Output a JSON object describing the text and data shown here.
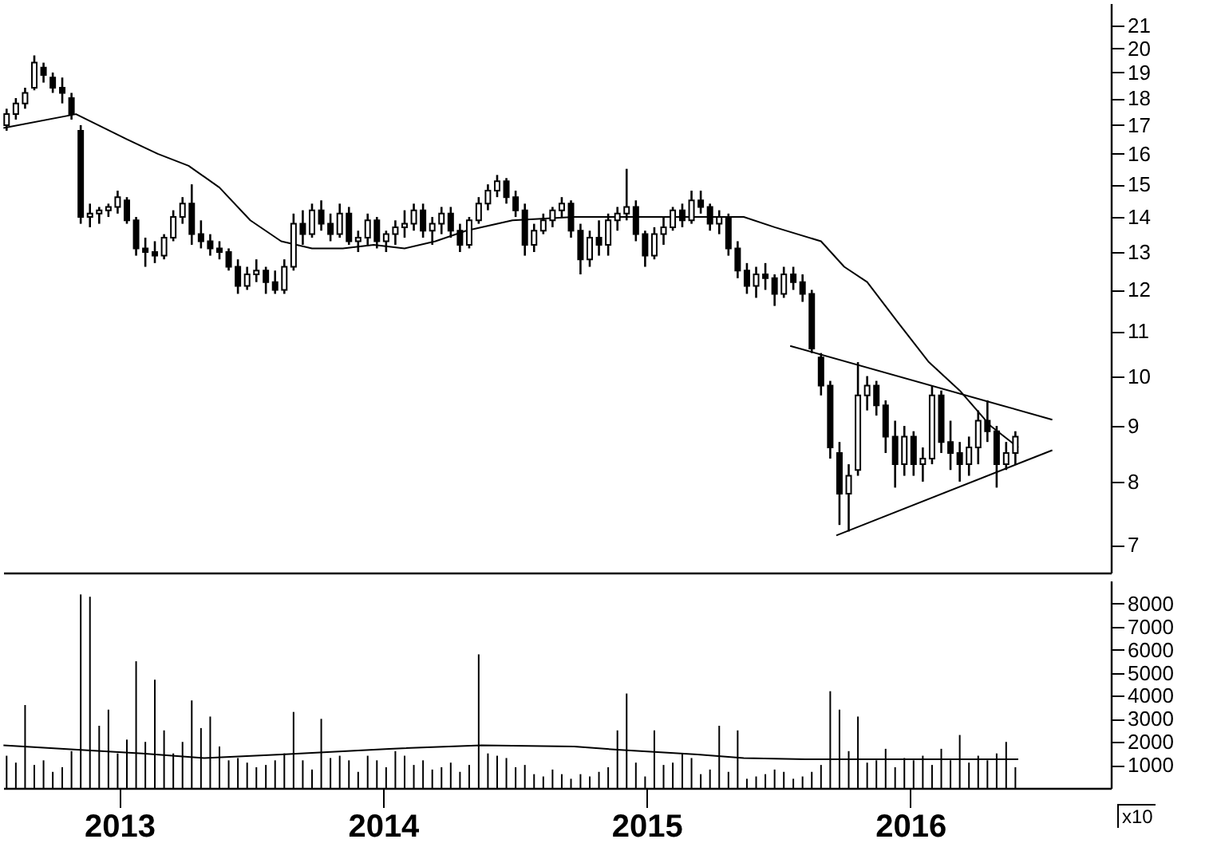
{
  "chart_data": [
    {
      "type": "candlestick",
      "tick_labels": "y",
      "log": true,
      "xlim": [
        2012.56,
        2016.76
      ],
      "xticks": [
        2013,
        2014,
        2015,
        2016
      ],
      "ylim": [
        6.6,
        22
      ],
      "yticks": [
        7,
        8,
        9,
        10,
        11,
        12,
        13,
        14,
        15,
        16,
        17,
        18,
        19,
        20,
        21
      ],
      "x": [
        2012.573,
        2012.608,
        2012.643,
        2012.678,
        2012.713,
        2012.748,
        2012.784,
        2012.819,
        2012.854,
        2012.889,
        2012.924,
        2012.959,
        2012.994,
        2013.029,
        2013.064,
        2013.099,
        2013.135,
        2013.17,
        2013.205,
        2013.24,
        2013.275,
        2013.31,
        2013.345,
        2013.38,
        2013.415,
        2013.45,
        2013.485,
        2013.52,
        2013.556,
        2013.591,
        2013.626,
        2013.661,
        2013.696,
        2013.731,
        2013.766,
        2013.801,
        2013.836,
        2013.871,
        2013.906,
        2013.942,
        2013.977,
        2014.012,
        2014.047,
        2014.082,
        2014.117,
        2014.152,
        2014.187,
        2014.222,
        2014.257,
        2014.292,
        2014.327,
        2014.363,
        2014.398,
        2014.433,
        2014.468,
        2014.503,
        2014.538,
        2014.573,
        2014.608,
        2014.643,
        2014.678,
        2014.713,
        2014.749,
        2014.784,
        2014.819,
        2014.854,
        2014.889,
        2014.924,
        2014.959,
        2014.994,
        2015.029,
        2015.064,
        2015.099,
        2015.135,
        2015.17,
        2015.205,
        2015.24,
        2015.275,
        2015.31,
        2015.345,
        2015.38,
        2015.415,
        2015.45,
        2015.485,
        2015.52,
        2015.556,
        2015.591,
        2015.626,
        2015.661,
        2015.696,
        2015.731,
        2015.766,
        2015.801,
        2015.836,
        2015.871,
        2015.906,
        2015.942,
        2015.977,
        2016.012,
        2016.047,
        2016.082,
        2016.117,
        2016.152,
        2016.187,
        2016.222,
        2016.257,
        2016.292,
        2016.327,
        2016.363,
        2016.398
      ],
      "ohlc": [
        [
          17.0,
          17.6,
          16.8,
          17.4
        ],
        [
          17.4,
          18.0,
          17.2,
          17.8
        ],
        [
          17.8,
          18.4,
          17.6,
          18.2
        ],
        [
          18.4,
          19.7,
          18.3,
          19.4
        ],
        [
          19.2,
          19.4,
          18.6,
          18.9
        ],
        [
          18.8,
          19.0,
          18.2,
          18.4
        ],
        [
          18.4,
          18.8,
          17.8,
          18.2
        ],
        [
          18.0,
          18.2,
          17.2,
          17.4
        ],
        [
          16.8,
          17.0,
          13.8,
          14.0
        ],
        [
          14.0,
          14.4,
          13.7,
          14.1
        ],
        [
          14.1,
          14.3,
          13.8,
          14.2
        ],
        [
          14.2,
          14.4,
          14.0,
          14.3
        ],
        [
          14.3,
          14.8,
          14.1,
          14.6
        ],
        [
          14.5,
          14.6,
          13.8,
          13.9
        ],
        [
          13.9,
          14.0,
          12.9,
          13.1
        ],
        [
          13.1,
          13.4,
          12.6,
          13.0
        ],
        [
          13.0,
          13.3,
          12.7,
          12.9
        ],
        [
          12.9,
          13.5,
          12.8,
          13.4
        ],
        [
          13.4,
          14.2,
          13.3,
          14.0
        ],
        [
          14.0,
          14.6,
          13.8,
          14.4
        ],
        [
          14.4,
          15.0,
          13.2,
          13.5
        ],
        [
          13.5,
          13.9,
          13.1,
          13.3
        ],
        [
          13.3,
          13.5,
          12.9,
          13.1
        ],
        [
          13.1,
          13.3,
          12.8,
          13.0
        ],
        [
          13.0,
          13.1,
          12.5,
          12.6
        ],
        [
          12.6,
          12.8,
          11.9,
          12.1
        ],
        [
          12.1,
          12.6,
          12.0,
          12.4
        ],
        [
          12.4,
          12.8,
          12.2,
          12.5
        ],
        [
          12.5,
          12.6,
          11.9,
          12.2
        ],
        [
          12.2,
          12.5,
          11.9,
          12.0
        ],
        [
          12.0,
          12.8,
          11.9,
          12.6
        ],
        [
          12.6,
          14.1,
          12.5,
          13.8
        ],
        [
          13.8,
          14.2,
          13.2,
          13.5
        ],
        [
          13.5,
          14.4,
          13.4,
          14.2
        ],
        [
          14.2,
          14.5,
          13.6,
          13.8
        ],
        [
          13.8,
          14.1,
          13.3,
          13.5
        ],
        [
          13.5,
          14.4,
          13.4,
          14.1
        ],
        [
          14.1,
          14.3,
          13.2,
          13.3
        ],
        [
          13.3,
          13.6,
          13.0,
          13.4
        ],
        [
          13.4,
          14.1,
          13.2,
          13.9
        ],
        [
          13.9,
          14.0,
          13.1,
          13.3
        ],
        [
          13.3,
          13.6,
          13.0,
          13.5
        ],
        [
          13.5,
          13.9,
          13.2,
          13.7
        ],
        [
          13.7,
          14.2,
          13.4,
          13.8
        ],
        [
          13.8,
          14.4,
          13.6,
          14.2
        ],
        [
          14.2,
          14.4,
          13.4,
          13.6
        ],
        [
          13.6,
          14.0,
          13.2,
          13.8
        ],
        [
          13.8,
          14.3,
          13.5,
          14.1
        ],
        [
          14.1,
          14.3,
          13.4,
          13.6
        ],
        [
          13.6,
          13.8,
          13.0,
          13.2
        ],
        [
          13.2,
          14.0,
          13.1,
          13.9
        ],
        [
          13.9,
          14.6,
          13.8,
          14.4
        ],
        [
          14.4,
          15.0,
          14.2,
          14.8
        ],
        [
          14.8,
          15.3,
          14.6,
          15.1
        ],
        [
          15.1,
          15.2,
          14.4,
          14.6
        ],
        [
          14.6,
          14.8,
          14.0,
          14.2
        ],
        [
          14.2,
          14.4,
          12.9,
          13.2
        ],
        [
          13.2,
          13.8,
          13.0,
          13.6
        ],
        [
          13.6,
          14.1,
          13.5,
          13.9
        ],
        [
          13.9,
          14.3,
          13.7,
          14.2
        ],
        [
          14.2,
          14.6,
          14.0,
          14.4
        ],
        [
          14.4,
          14.5,
          13.4,
          13.6
        ],
        [
          13.6,
          13.8,
          12.4,
          12.8
        ],
        [
          12.8,
          13.6,
          12.6,
          13.4
        ],
        [
          13.4,
          13.9,
          12.9,
          13.2
        ],
        [
          13.2,
          14.1,
          12.9,
          13.9
        ],
        [
          13.9,
          14.3,
          13.6,
          14.1
        ],
        [
          14.1,
          15.5,
          13.9,
          14.3
        ],
        [
          14.3,
          14.5,
          13.3,
          13.5
        ],
        [
          13.5,
          13.6,
          12.6,
          12.9
        ],
        [
          12.9,
          13.7,
          12.8,
          13.5
        ],
        [
          13.5,
          14.0,
          13.2,
          13.7
        ],
        [
          13.7,
          14.3,
          13.6,
          14.2
        ],
        [
          14.2,
          14.4,
          13.7,
          13.9
        ],
        [
          13.9,
          14.8,
          13.8,
          14.5
        ],
        [
          14.5,
          14.8,
          14.1,
          14.3
        ],
        [
          14.3,
          14.4,
          13.6,
          13.8
        ],
        [
          13.8,
          14.2,
          13.5,
          14.0
        ],
        [
          14.0,
          14.1,
          12.9,
          13.1
        ],
        [
          13.1,
          13.3,
          12.3,
          12.5
        ],
        [
          12.5,
          12.7,
          11.9,
          12.1
        ],
        [
          12.1,
          12.6,
          11.8,
          12.4
        ],
        [
          12.4,
          12.7,
          12.0,
          12.3
        ],
        [
          12.3,
          12.4,
          11.6,
          11.9
        ],
        [
          11.9,
          12.6,
          11.8,
          12.4
        ],
        [
          12.4,
          12.6,
          12.0,
          12.2
        ],
        [
          12.2,
          12.4,
          11.7,
          11.9
        ],
        [
          11.9,
          12.0,
          10.5,
          10.6
        ],
        [
          10.4,
          10.5,
          9.6,
          9.8
        ],
        [
          9.8,
          9.9,
          8.4,
          8.6
        ],
        [
          8.5,
          8.7,
          7.3,
          7.8
        ],
        [
          7.8,
          8.3,
          7.2,
          8.1
        ],
        [
          8.2,
          10.3,
          8.1,
          9.6
        ],
        [
          9.6,
          10.0,
          9.3,
          9.8
        ],
        [
          9.8,
          9.9,
          9.2,
          9.4
        ],
        [
          9.4,
          9.5,
          8.5,
          8.8
        ],
        [
          8.8,
          9.1,
          7.9,
          8.3
        ],
        [
          8.3,
          9.0,
          8.1,
          8.8
        ],
        [
          8.8,
          8.9,
          8.1,
          8.3
        ],
        [
          8.3,
          8.6,
          8.0,
          8.4
        ],
        [
          8.4,
          9.8,
          8.3,
          9.6
        ],
        [
          9.6,
          9.7,
          8.5,
          8.7
        ],
        [
          8.7,
          9.1,
          8.2,
          8.5
        ],
        [
          8.5,
          8.7,
          8.0,
          8.3
        ],
        [
          8.3,
          8.8,
          8.1,
          8.6
        ],
        [
          8.6,
          9.3,
          8.3,
          9.1
        ],
        [
          9.1,
          9.5,
          8.7,
          8.9
        ],
        [
          8.9,
          9.0,
          7.9,
          8.3
        ],
        [
          8.3,
          8.7,
          8.2,
          8.5
        ],
        [
          8.5,
          8.9,
          8.3,
          8.8
        ]
      ],
      "color": "#000000",
      "series": [
        {
          "type": "line",
          "color": "#000000",
          "x": [
            2012.561,
            2012.836,
            2013.029,
            2013.146,
            2013.263,
            2013.38,
            2013.497,
            2013.614,
            2013.731,
            2013.848,
            2013.965,
            2014.082,
            2014.199,
            2014.316,
            2014.491,
            2014.725,
            2014.901,
            2015.193,
            2015.368,
            2015.485,
            2015.661,
            2015.749,
            2015.836,
            2015.953,
            2016.07,
            2016.187,
            2016.304,
            2016.409
          ],
          "values": [
            16.9,
            17.4,
            16.5,
            16.0,
            15.6,
            14.9,
            13.9,
            13.3,
            13.1,
            13.1,
            13.2,
            13.1,
            13.3,
            13.6,
            13.9,
            14.0,
            14.0,
            14.0,
            14.0,
            13.7,
            13.3,
            12.6,
            12.2,
            11.2,
            10.3,
            9.7,
            9.0,
            8.6
          ]
        },
        {
          "type": "line",
          "color": "#000000",
          "x": [
            2015.544,
            2016.538
          ],
          "values": [
            10.66,
            9.12
          ]
        },
        {
          "type": "line",
          "color": "#000000",
          "x": [
            2015.719,
            2016.538
          ],
          "values": [
            7.14,
            8.55
          ]
        }
      ]
    },
    {
      "type": "bar",
      "xlim": [
        2012.56,
        2016.76
      ],
      "xticks": [
        2013,
        2014,
        2015,
        2016
      ],
      "ylim": [
        0,
        9000
      ],
      "yticks": [
        1000,
        2000,
        3000,
        4000,
        5000,
        6000,
        7000,
        8000
      ],
      "annotations": [
        "x10"
      ],
      "series": [
        {
          "type": "bar",
          "color": "#000000",
          "x": [
            2012.573,
            2012.608,
            2012.643,
            2012.678,
            2012.713,
            2012.748,
            2012.784,
            2012.819,
            2012.854,
            2012.889,
            2012.924,
            2012.959,
            2012.994,
            2013.029,
            2013.064,
            2013.099,
            2013.135,
            2013.17,
            2013.205,
            2013.24,
            2013.275,
            2013.31,
            2013.345,
            2013.38,
            2013.415,
            2013.45,
            2013.485,
            2013.52,
            2013.556,
            2013.591,
            2013.626,
            2013.661,
            2013.696,
            2013.731,
            2013.766,
            2013.801,
            2013.836,
            2013.871,
            2013.906,
            2013.942,
            2013.977,
            2014.012,
            2014.047,
            2014.082,
            2014.117,
            2014.152,
            2014.187,
            2014.222,
            2014.257,
            2014.292,
            2014.327,
            2014.363,
            2014.398,
            2014.433,
            2014.468,
            2014.503,
            2014.538,
            2014.573,
            2014.608,
            2014.643,
            2014.678,
            2014.713,
            2014.749,
            2014.784,
            2014.819,
            2014.854,
            2014.889,
            2014.924,
            2014.959,
            2014.994,
            2015.029,
            2015.064,
            2015.099,
            2015.135,
            2015.17,
            2015.205,
            2015.24,
            2015.275,
            2015.31,
            2015.345,
            2015.38,
            2015.415,
            2015.45,
            2015.485,
            2015.52,
            2015.556,
            2015.591,
            2015.626,
            2015.661,
            2015.696,
            2015.731,
            2015.766,
            2015.801,
            2015.836,
            2015.871,
            2015.906,
            2015.942,
            2015.977,
            2016.012,
            2016.047,
            2016.082,
            2016.117,
            2016.152,
            2016.187,
            2016.222,
            2016.257,
            2016.292,
            2016.327,
            2016.363,
            2016.398
          ],
          "values": [
            1400,
            1100,
            3600,
            1000,
            1200,
            700,
            900,
            1600,
            8400,
            8300,
            2700,
            3400,
            1500,
            2100,
            5500,
            2000,
            4700,
            2500,
            1500,
            2000,
            3800,
            2600,
            3100,
            1800,
            1200,
            1300,
            1100,
            900,
            1000,
            1200,
            1500,
            3300,
            1200,
            800,
            3000,
            1300,
            1400,
            1200,
            700,
            1400,
            1200,
            900,
            1600,
            1400,
            1000,
            1200,
            800,
            900,
            1100,
            700,
            1000,
            5800,
            1500,
            1400,
            1300,
            900,
            1000,
            600,
            500,
            800,
            600,
            400,
            600,
            500,
            700,
            900,
            2500,
            4100,
            1100,
            500,
            2500,
            1000,
            1100,
            1500,
            1300,
            600,
            800,
            2700,
            700,
            2500,
            400,
            500,
            600,
            800,
            700,
            400,
            500,
            700,
            1000,
            4200,
            3400,
            1600,
            3100,
            1100,
            1200,
            1700,
            900,
            1300,
            1200,
            1400,
            1000,
            1700,
            1200,
            2300,
            1100,
            1400,
            1200,
            1500,
            2000,
            900
          ]
        },
        {
          "type": "line",
          "color": "#000000",
          "x": [
            2012.561,
            2012.854,
            2013.088,
            2013.322,
            2013.614,
            2014.023,
            2014.374,
            2014.725,
            2014.901,
            2015.193,
            2015.368,
            2015.602,
            2016.07,
            2016.409
          ],
          "values": [
            1850,
            1650,
            1500,
            1300,
            1450,
            1700,
            1850,
            1800,
            1650,
            1450,
            1300,
            1250,
            1250,
            1250
          ]
        }
      ]
    }
  ]
}
